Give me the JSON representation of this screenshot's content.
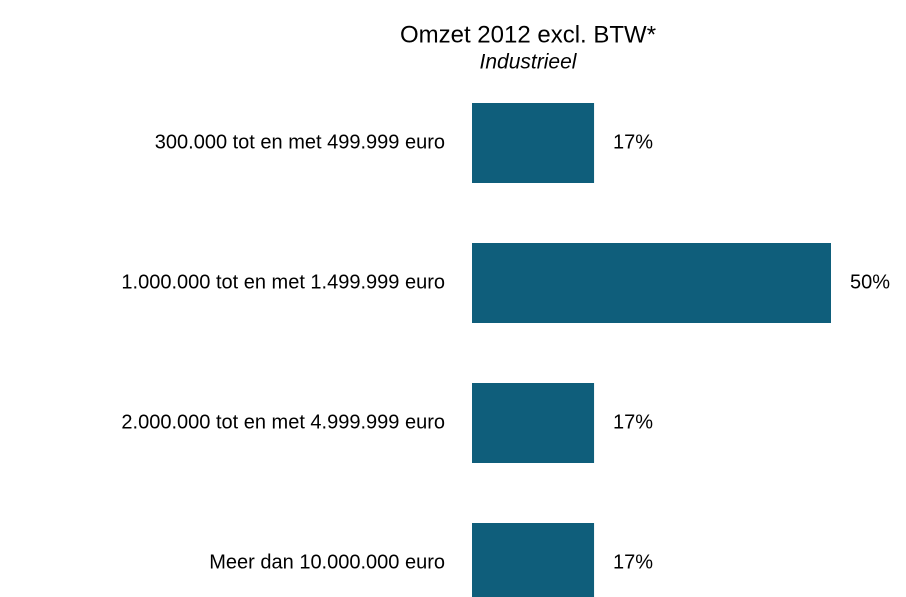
{
  "chart_data": {
    "type": "bar",
    "orientation": "horizontal",
    "title": "Omzet 2012 excl. BTW*",
    "subtitle": "Industrieel",
    "categories": [
      "300.000 tot en met 499.999 euro",
      "1.000.000 tot en met 1.499.999 euro",
      "2.000.000 tot en met 4.999.999 euro",
      "Meer dan 10.000.000 euro"
    ],
    "values": [
      17,
      50,
      17,
      17
    ],
    "value_labels": [
      "17%",
      "50%",
      "17%",
      "17%"
    ],
    "color": "#0f5e7b"
  }
}
